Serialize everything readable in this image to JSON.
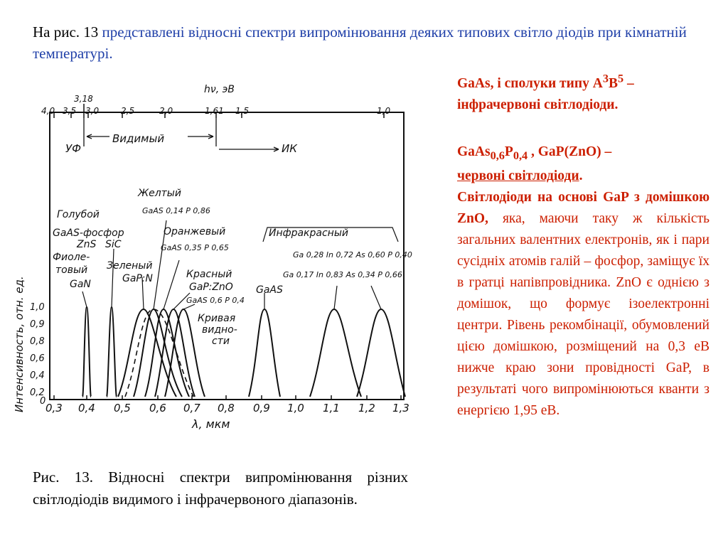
{
  "intro": {
    "prefix": "На рис. 13 ",
    "text": "представлені відносні спектри випромінювання деяких типових світло діодів при кімнатній температурі."
  },
  "caption": "Рис. 13. Відносні спектри випромінювання різних світлодіодів видимого і інфрачервоного діапазонів.",
  "right": {
    "p1": {
      "a": "GaAs, і сполуки типу A",
      "sup1": "3",
      "b": "B",
      "sup2": "5",
      "c": " – інфрачервоні світлодіоди."
    },
    "p2": {
      "a": "GaAs",
      "sub1": "0,6",
      "b": "P",
      "sub2": "0,4",
      "c": " , GaP(ZnO) –",
      "d": "червоні світлодіоди",
      "e": "."
    },
    "p3": {
      "bold": "Світлодіоди на основі GaP з домішкою ZnO,",
      "rest": " яка, маючи таку ж кількість загальних валентних електронів, як і пари сусідніх атомів галій – фосфор, заміщує їх в гратці напівпровідника. ZnO є однією з домішок, що формує ізоелектронні центри. Рівень рекомбінації, обумовлений цією домішкою, розміщений  на 0,3 еВ нижче краю зони провідності GaP, в результаті чого випромінюються кванти з енергією 1,95 еВ."
    }
  },
  "figure": {
    "top_title": "hν, эВ",
    "top_ticks": [
      "4,0",
      "3,5",
      "3,18",
      "3,0",
      "2,5",
      "2,0",
      "1,61",
      "1,5",
      "1,0"
    ],
    "bottom_ticks": [
      "0,3",
      "0,4",
      "0,5",
      "0,6",
      "0,7",
      "0,8",
      "0,9",
      "1,0",
      "1,1",
      "1,2",
      "1,3"
    ],
    "xlabel": "λ, мкм",
    "ylabel": "Интенсивность, отн. ед.",
    "y_ticks": [
      "1,0",
      "0,9",
      "0,8",
      "0,6",
      "0,4",
      "0,2",
      "0"
    ],
    "regions": {
      "uv": "УФ",
      "visible": "Видимый",
      "ir": "ИК",
      "infrared": "Инфракрасный"
    },
    "labels": {
      "blue": "Голубой",
      "gaas_phosphor": "GaAS-фосфор",
      "zns": "ZnS",
      "sic": "SiC",
      "violet1": "Фиоле-",
      "violet2": "товый",
      "gan": "GaN",
      "yellow": "Желтый",
      "yellow_comp": "GaAS 0,14 P 0,86",
      "orange": "Оранжевый",
      "orange_comp": "GaAS 0,35 P 0,65",
      "green": "Зеленый",
      "gapn": "GaP:N",
      "red": "Красный",
      "gapzno": "GaP:ZnO",
      "red_comp": "GaAS 0,6 P 0,4",
      "curve1": "Кривая",
      "curve2": "видно-",
      "curve3": "сти",
      "gaas": "GaAS",
      "ir1": "Ga 0,28 In 0,72 As 0,60 P 0,40",
      "ir2": "Ga 0,17 In 0,83 As 0,34 P 0,66"
    }
  }
}
